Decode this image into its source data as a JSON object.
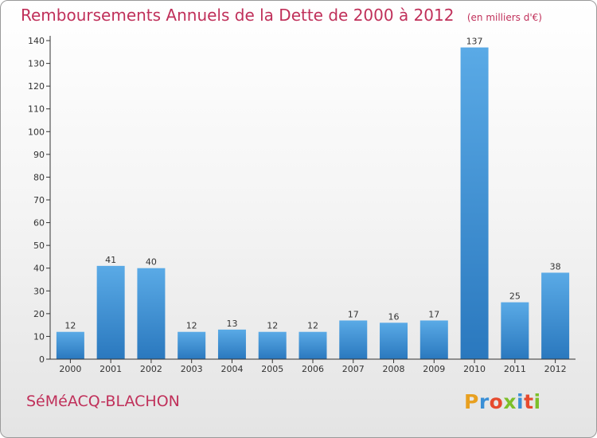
{
  "header": {
    "title": "Remboursements Annuels de la Dette de 2000 à 2012",
    "unit": "(en milliers d'€)"
  },
  "footer": {
    "commune": "SéMéACQ-BLACHON",
    "logo_letters": [
      "P",
      "r",
      "o",
      "x",
      "i",
      "t",
      "i"
    ],
    "logo_colors": [
      "#e8a020",
      "#3a8fd6",
      "#e64a2e",
      "#7cbf2a",
      "#3a8fd6",
      "#e64a2e",
      "#7cbf2a"
    ]
  },
  "colors": {
    "title": "#c0305a",
    "bar_top": "#5aaae6",
    "bar_bottom": "#2a78be",
    "axis": "#333333"
  },
  "chart_data": {
    "type": "bar",
    "categories": [
      "2000",
      "2001",
      "2002",
      "2003",
      "2004",
      "2005",
      "2006",
      "2007",
      "2008",
      "2009",
      "2010",
      "2011",
      "2012"
    ],
    "values": [
      12,
      41,
      40,
      12,
      13,
      12,
      12,
      17,
      16,
      17,
      137,
      25,
      38
    ],
    "title": "Remboursements Annuels de la Dette de 2000 à 2012",
    "subtitle": "(en milliers d'€)",
    "xlabel": "",
    "ylabel": "",
    "ylim": [
      0,
      140
    ],
    "yticks": [
      0,
      10,
      20,
      30,
      40,
      50,
      60,
      70,
      80,
      90,
      100,
      110,
      120,
      130,
      140
    ],
    "grid": false,
    "legend": "none"
  }
}
